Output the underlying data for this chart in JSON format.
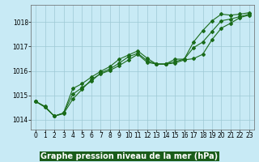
{
  "xlabel": "Graphe pression niveau de la mer (hPa)",
  "ylim": [
    1013.6,
    1018.7
  ],
  "xlim": [
    -0.5,
    23.5
  ],
  "yticks": [
    1014,
    1015,
    1016,
    1017,
    1018
  ],
  "xticks": [
    0,
    1,
    2,
    3,
    4,
    5,
    6,
    7,
    8,
    9,
    10,
    11,
    12,
    13,
    14,
    15,
    16,
    17,
    18,
    19,
    20,
    21,
    22,
    23
  ],
  "plot_bg_color": "#c8eaf5",
  "fig_bg_color": "#c8eaf5",
  "label_bar_color": "#1a5c1a",
  "label_text_color": "#ffffff",
  "line_color": "#1a6b1a",
  "grid_color": "#9dc8d4",
  "line1_y": [
    1014.75,
    1014.55,
    1014.15,
    1014.25,
    1014.85,
    1015.25,
    1015.65,
    1015.88,
    1016.02,
    1016.22,
    1016.45,
    1016.68,
    1016.35,
    1016.28,
    1016.28,
    1016.32,
    1016.45,
    1016.5,
    1016.68,
    1017.28,
    1017.75,
    1017.95,
    1018.18,
    1018.28
  ],
  "line2_y": [
    1014.75,
    1014.52,
    1014.15,
    1014.28,
    1015.28,
    1015.48,
    1015.75,
    1015.98,
    1016.18,
    1016.48,
    1016.65,
    1016.82,
    1016.52,
    1016.28,
    1016.28,
    1016.48,
    1016.48,
    1017.18,
    1017.65,
    1018.05,
    1018.32,
    1018.28,
    1018.32,
    1018.38
  ],
  "line3_y": [
    1014.75,
    1014.52,
    1014.15,
    1014.28,
    1015.05,
    1015.32,
    1015.58,
    1015.92,
    1016.08,
    1016.32,
    1016.58,
    1016.72,
    1016.42,
    1016.28,
    1016.28,
    1016.38,
    1016.48,
    1016.95,
    1017.18,
    1017.62,
    1018.05,
    1018.12,
    1018.22,
    1018.32
  ],
  "tick_fontsize": 5.5,
  "xlabel_fontsize": 7.0
}
